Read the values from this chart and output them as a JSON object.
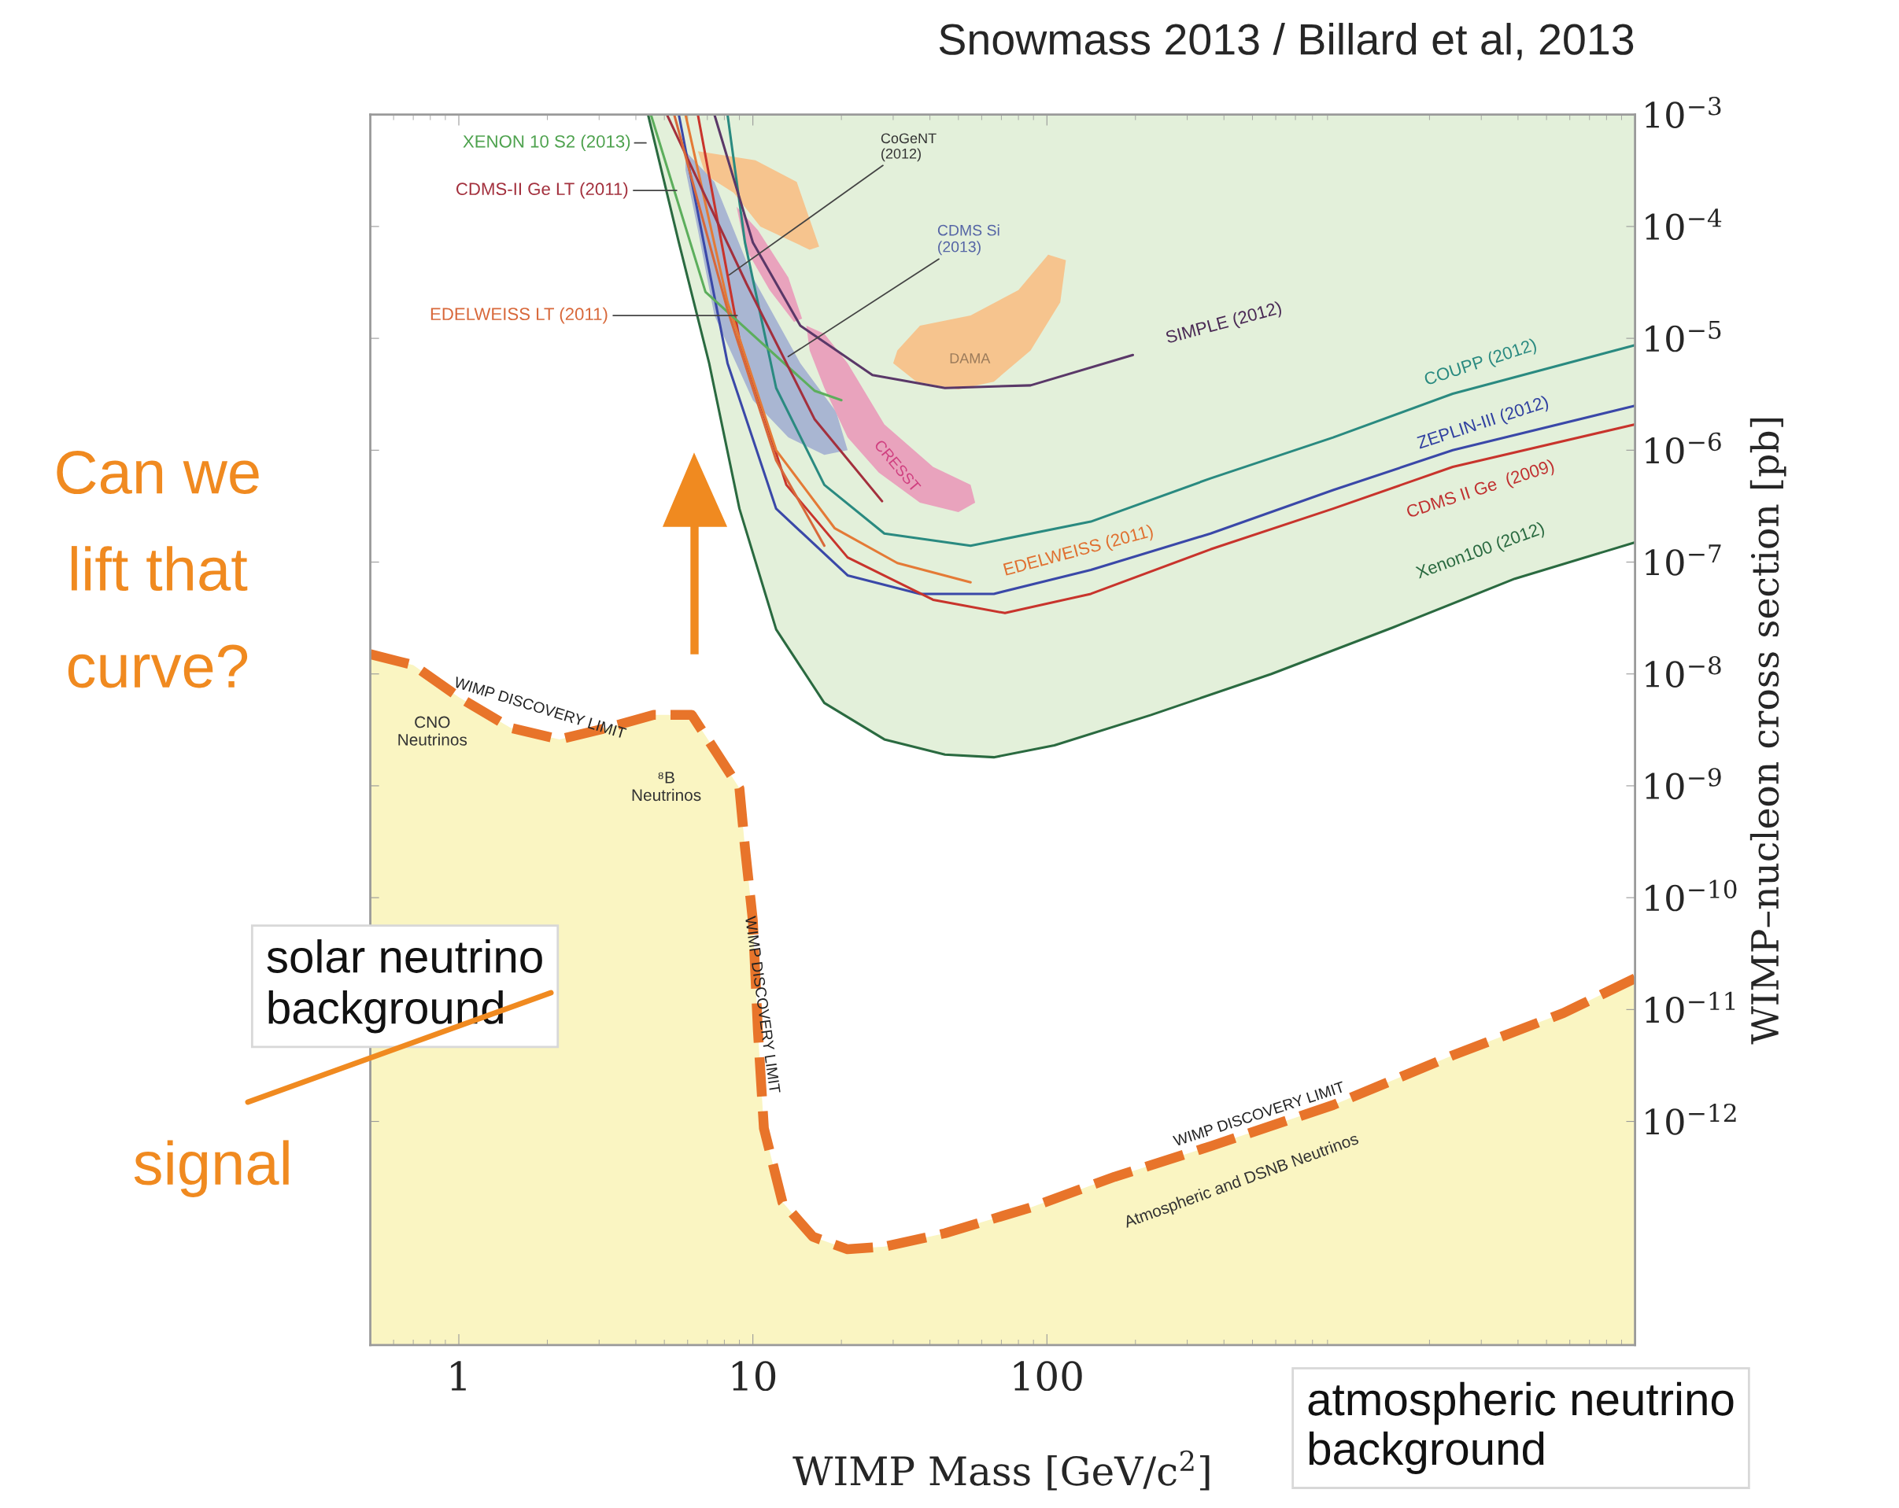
{
  "chart_data": {
    "type": "line",
    "title": "Snowmass 2013 / Billard et al, 2013",
    "xlabel": "WIMP Mass [GeV/c$^{2}$]",
    "ylabel": "WIMP–nucleon cross section [pb]",
    "log": "xy",
    "xlim": [
      0.5,
      10000
    ],
    "ylim": [
      1e-14,
      0.001
    ],
    "xticks": [
      1,
      10,
      100
    ],
    "yticks": [
      {
        "value": 0.001,
        "label": "10$^{−3}$"
      },
      {
        "value": 0.0001,
        "label": "10$^{−4}$"
      },
      {
        "value": 1e-05,
        "label": "10$^{−5}$"
      },
      {
        "value": 1e-06,
        "label": "10$^{−6}$"
      },
      {
        "value": 1e-07,
        "label": "10$^{−7}$"
      },
      {
        "value": 1e-08,
        "label": "10$^{−8}$"
      },
      {
        "value": 1e-09,
        "label": "10$^{−9}$"
      },
      {
        "value": 1e-10,
        "label": "10$^{−10}$"
      },
      {
        "value": 1e-11,
        "label": "10$^{−11}$"
      },
      {
        "value": 1e-12,
        "label": "10$^{−12}$"
      }
    ],
    "series": [
      {
        "type": "area",
        "color": "#f6c48e",
        "x": [
          6.5,
          10.2,
          14.1,
          16.8,
          15.6,
          12.7,
          10.6,
          8.6,
          6.9
        ],
        "values": [
          0.00047,
          0.00039,
          0.00025,
          6.6e-05,
          6.2e-05,
          8e-05,
          0.0001,
          0.0002,
          0.00029
        ]
      },
      {
        "type": "area",
        "color": "#f6c48e",
        "x": [
          31,
          37,
          55,
          80,
          101,
          116,
          111,
          88,
          66,
          50,
          36,
          30
        ],
        "values": [
          7.8e-06,
          1.3e-05,
          1.6e-05,
          2.7e-05,
          5.6e-05,
          5e-05,
          2.1e-05,
          7.8e-06,
          4.1e-06,
          3.5e-06,
          4.1e-06,
          6e-06
        ]
      },
      {
        "type": "area",
        "color": "#a9b6d2",
        "x": [
          5.9,
          7.4,
          10,
          14.5,
          19.2,
          21,
          17.5,
          13.2,
          10,
          7.4,
          6.5,
          5.9
        ],
        "values": [
          0.00047,
          0.00025,
          3.5e-05,
          6e-06,
          2.2e-06,
          1e-06,
          9.1e-07,
          1.3e-06,
          2.8e-06,
          1.6e-05,
          9.3e-05,
          0.00032
        ]
      },
      {
        "type": "area",
        "color": "#e9a3bd",
        "x": [
          8.8,
          10.4,
          13.2,
          14.7,
          13.8,
          11.4,
          9.4
        ],
        "values": [
          0.00015,
          9.3e-05,
          3.5e-05,
          1.5e-05,
          1.4e-05,
          2.7e-05,
          6.5e-05
        ]
      },
      {
        "type": "area",
        "color": "#e9a3bd",
        "x": [
          15.2,
          17.5,
          21,
          28,
          41,
          55,
          57,
          50,
          37,
          26.8,
          21,
          17.5,
          15.6
        ],
        "values": [
          1.3e-05,
          1.1e-05,
          6e-06,
          1.7e-06,
          7.1e-07,
          4.9e-07,
          3.4e-07,
          2.8e-07,
          3.4e-07,
          6.3e-07,
          1.3e-06,
          3.6e-06,
          7.8e-06
        ]
      },
      {
        "color": "#2a6a40",
        "x": [
          4.4,
          5.6,
          7.1,
          9.0,
          12,
          17.5,
          28,
          45,
          66,
          106,
          226,
          580,
          1500,
          3900,
          10000
        ],
        "values": [
          0.001,
          7.2e-05,
          6e-06,
          3e-07,
          2.5e-08,
          5.5e-09,
          2.6e-09,
          1.9e-09,
          1.8e-09,
          2.3e-09,
          4.3e-09,
          1e-08,
          2.6e-08,
          7.1e-08,
          1.5e-07
        ],
        "lower": [
          0.001,
          7.2e-05,
          6e-06,
          3e-07,
          2.5e-08,
          5.5e-09,
          2.6e-09,
          1.9e-09,
          1.8e-09,
          2.3e-09,
          4.3e-09,
          1e-08,
          2.6e-08,
          7.1e-08,
          1.5e-07
        ],
        "upper": [
          0.001,
          0.001,
          0.001,
          0.001,
          0.001,
          0.001,
          0.001,
          0.001,
          0.001,
          0.001,
          0.001,
          0.001,
          0.001,
          0.001,
          0.001
        ]
      },
      {
        "color": "#2a8a80",
        "x": [
          8.2,
          9.4,
          12,
          17.5,
          28,
          55,
          141,
          360,
          940,
          2400,
          10000
        ],
        "values": [
          0.001,
          7.2e-05,
          3.6e-06,
          4.9e-07,
          1.8e-07,
          1.4e-07,
          2.3e-07,
          5.6e-07,
          1.3e-06,
          3.2e-06,
          8.7e-06
        ]
      },
      {
        "color": "#3a48a8",
        "x": [
          5.6,
          6.2,
          8.2,
          12,
          21,
          37,
          66,
          141,
          360,
          940,
          2400,
          10000
        ],
        "values": [
          0.001,
          0.00025,
          6e-06,
          3e-07,
          7.6e-08,
          5.2e-08,
          5.2e-08,
          8.5e-08,
          1.8e-07,
          4.4e-07,
          1e-06,
          2.5e-06
        ]
      },
      {
        "color": "#c8342c",
        "x": [
          6.5,
          9,
          13,
          21,
          41,
          72,
          141,
          360,
          940,
          2400,
          10000
        ],
        "values": [
          0.001,
          9.8e-06,
          4.9e-07,
          1.1e-07,
          4.6e-08,
          3.5e-08,
          5.2e-08,
          1.3e-07,
          3e-07,
          7.1e-07,
          1.7e-06
        ]
      },
      {
        "color": "#e47a36",
        "x": [
          5.9,
          8.2,
          12,
          19,
          31,
          55
        ],
        "values": [
          0.001,
          2.1e-05,
          1e-06,
          2e-07,
          9.8e-08,
          6.6e-08
        ]
      },
      {
        "color": "#5a3868",
        "x": [
          7.4,
          10,
          14.5,
          25.5,
          45,
          88,
          196
        ],
        "values": [
          0.001,
          7.2e-05,
          1.3e-05,
          4.7e-06,
          3.6e-06,
          3.8e-06,
          7.1e-06
        ]
      },
      {
        "color": "#5cae5c",
        "x": [
          4.5,
          6.9,
          16.2,
          20
        ],
        "values": [
          0.001,
          2.6e-05,
          3.4e-06,
          2.8e-06
        ]
      },
      {
        "color": "#a3303d",
        "x": [
          5.1,
          9.5,
          16.2,
          27.5
        ],
        "values": [
          0.001,
          3.1e-05,
          1.9e-06,
          3.5e-07
        ]
      },
      {
        "color": "#d8683a",
        "x": [
          5.4,
          8.2,
          12,
          17.5
        ],
        "values": [
          0.001,
          1.8e-05,
          8.1e-07,
          1.4e-07
        ]
      },
      {
        "color": "#e8742a",
        "line_style": "dashed",
        "x": [
          0.5,
          0.7,
          1,
          1.5,
          2.2,
          3.2,
          4.6,
          6.2,
          7.5,
          9,
          9.4,
          10,
          10.4,
          10.9,
          12.6,
          16,
          21,
          28,
          45,
          88,
          170,
          360,
          940,
          2400,
          5700,
          10000
        ],
        "values": [
          1.5e-08,
          1.2e-08,
          6.2e-09,
          3.3e-09,
          2.6e-09,
          3.3e-09,
          4.3e-09,
          4.3e-09,
          2e-09,
          9.5e-10,
          2.8e-10,
          6.2e-11,
          6.5e-12,
          8.7e-13,
          1.9e-13,
          9.3e-14,
          7.2e-14,
          7.6e-14,
          1e-13,
          1.7e-13,
          3.2e-13,
          6e-13,
          1.4e-12,
          3.9e-12,
          9.3e-12,
          1.9e-11
        ],
        "lower": [
          1e-14,
          1e-14,
          1e-14,
          1e-14,
          1e-14,
          1e-14,
          1e-14,
          1e-14,
          1e-14,
          1e-14,
          1e-14,
          1e-14,
          1e-14,
          1e-14,
          1e-14,
          1e-14,
          1e-14,
          1e-14,
          1e-14,
          1e-14,
          1e-14,
          1e-14,
          1e-14,
          1e-14,
          1e-14,
          1e-14
        ],
        "upper": [
          1.5e-08,
          1.2e-08,
          6.2e-09,
          3.3e-09,
          2.6e-09,
          3.3e-09,
          4.3e-09,
          4.3e-09,
          2e-09,
          9.5e-10,
          2.8e-10,
          6.2e-11,
          6.5e-12,
          8.7e-13,
          1.9e-13,
          9.3e-14,
          7.2e-14,
          7.6e-14,
          1e-13,
          1.7e-13,
          3.2e-13,
          6e-13,
          1.4e-12,
          3.9e-12,
          9.3e-12,
          1.9e-11
        ]
      }
    ],
    "annotations": [
      {
        "text": "CDMS-II Ge LT (2011)",
        "x": 5.6,
        "y": 0.00021
      },
      {
        "text": "CoGeNT\n(2012)",
        "x": 8.2,
        "y": 3.6e-05
      },
      {
        "text": "CDMS Si\n(2013)",
        "x": 13,
        "y": 6.7e-06
      },
      {
        "text": "EDELWEISS LT (2011)",
        "x": 9,
        "y": 1.6e-05
      },
      {
        "text": "WIMP DISCOVERY LIMIT",
        "x": 10.7,
        "y": 1.1e-11
      },
      "XENON 10 S2 (2013)",
      "DAMA",
      "CRESST",
      "SIMPLE (2012)",
      "COUPP (2012)",
      "ZEPLIN-III (2012)",
      "CDMS II Ge  (2009)",
      "EDELWEISS (2011)",
      "Xenon100 (2012)",
      "CNO\nNeutrinos",
      "⁸B\nNeutrinos",
      "WIMP DISCOVERY LIMIT",
      "WIMP DISCOVERY LIMIT",
      "Atmospheric and DSNB Neutrinos",
      "Can we\nlift that\ncurve?",
      "solar neutrino\nbackground",
      "signal",
      "atmospheric neutrino\nbackground"
    ]
  }
}
